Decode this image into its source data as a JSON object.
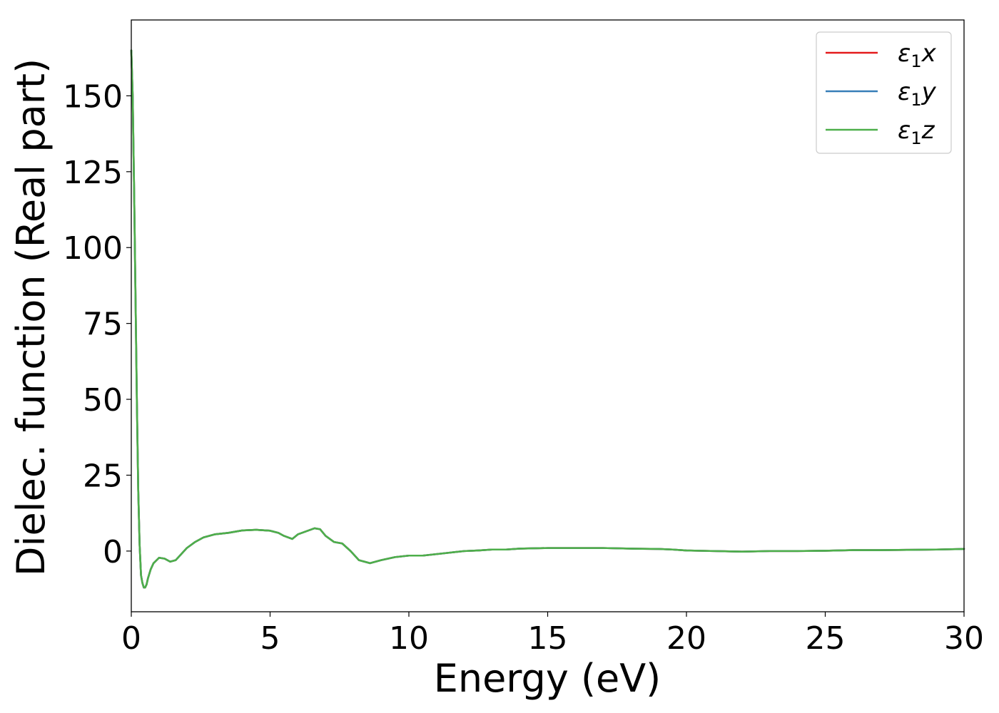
{
  "chart_data": {
    "type": "line",
    "title": "",
    "xlabel": "Energy (eV)",
    "ylabel": "Dielec. function (Real part)",
    "xlim": [
      0,
      30
    ],
    "ylim": [
      -20,
      175
    ],
    "xticks": [
      0,
      5,
      10,
      15,
      20,
      25,
      30
    ],
    "yticks": [
      0,
      25,
      50,
      75,
      100,
      125,
      150
    ],
    "grid": false,
    "legend_position": "top-right",
    "series": [
      {
        "name": "ε1x",
        "legend_base": "ε",
        "legend_sub": "1",
        "legend_suffix": "x",
        "color": "#e41a1c",
        "x": [
          0.0,
          0.05,
          0.1,
          0.15,
          0.2,
          0.25,
          0.3,
          0.35,
          0.4,
          0.45,
          0.5,
          0.55,
          0.6,
          0.7,
          0.8,
          1.0,
          1.2,
          1.4,
          1.6,
          1.8,
          2.0,
          2.3,
          2.6,
          3.0,
          3.5,
          4.0,
          4.5,
          5.0,
          5.3,
          5.5,
          5.8,
          6.0,
          6.3,
          6.6,
          6.8,
          7.0,
          7.3,
          7.6,
          7.9,
          8.2,
          8.6,
          9.0,
          9.5,
          10.0,
          10.5,
          11.0,
          11.5,
          12.0,
          12.5,
          13.0,
          13.5,
          14.0,
          15.0,
          16.0,
          17.0,
          18.0,
          19.0,
          19.5,
          20.0,
          21.0,
          22.0,
          23.0,
          24.0,
          25.0,
          26.0,
          27.0,
          28.0,
          29.0,
          30.0
        ],
        "y": [
          165,
          150,
          120,
          85,
          50,
          20,
          2,
          -8,
          -10.5,
          -12,
          -12,
          -11,
          -9,
          -6,
          -4,
          -2.2,
          -2.5,
          -3.5,
          -3,
          -1,
          1,
          3,
          4.5,
          5.5,
          6,
          6.8,
          7,
          6.7,
          6,
          5,
          4,
          5.5,
          6.5,
          7.5,
          7.2,
          5,
          3,
          2.5,
          0,
          -3,
          -4,
          -3,
          -2,
          -1.5,
          -1.5,
          -1,
          -0.5,
          0,
          0.2,
          0.5,
          0.5,
          0.8,
          1,
          1,
          1,
          0.8,
          0.7,
          0.5,
          0.2,
          0,
          -0.2,
          0,
          0,
          0.1,
          0.3,
          0.3,
          0.4,
          0.5,
          0.7
        ]
      },
      {
        "name": "ε1y",
        "legend_base": "ε",
        "legend_sub": "1",
        "legend_suffix": "y",
        "color": "#377eb8",
        "x": [
          0.0,
          0.05,
          0.1,
          0.15,
          0.2,
          0.25,
          0.3,
          0.35,
          0.4,
          0.45,
          0.5,
          0.55,
          0.6,
          0.7,
          0.8,
          1.0,
          1.2,
          1.4,
          1.6,
          1.8,
          2.0,
          2.3,
          2.6,
          3.0,
          3.5,
          4.0,
          4.5,
          5.0,
          5.3,
          5.5,
          5.8,
          6.0,
          6.3,
          6.6,
          6.8,
          7.0,
          7.3,
          7.6,
          7.9,
          8.2,
          8.6,
          9.0,
          9.5,
          10.0,
          10.5,
          11.0,
          11.5,
          12.0,
          12.5,
          13.0,
          13.5,
          14.0,
          15.0,
          16.0,
          17.0,
          18.0,
          19.0,
          19.5,
          20.0,
          21.0,
          22.0,
          23.0,
          24.0,
          25.0,
          26.0,
          27.0,
          28.0,
          29.0,
          30.0
        ],
        "y": [
          165,
          150,
          120,
          85,
          50,
          20,
          2,
          -8,
          -10.5,
          -12,
          -12,
          -11,
          -9,
          -6,
          -4,
          -2.2,
          -2.5,
          -3.5,
          -3,
          -1,
          1,
          3,
          4.5,
          5.5,
          6,
          6.8,
          7,
          6.7,
          6,
          5,
          4,
          5.5,
          6.5,
          7.5,
          7.2,
          5,
          3,
          2.5,
          0,
          -3,
          -4,
          -3,
          -2,
          -1.5,
          -1.5,
          -1,
          -0.5,
          0,
          0.2,
          0.5,
          0.5,
          0.8,
          1,
          1,
          1,
          0.8,
          0.7,
          0.5,
          0.2,
          0,
          -0.2,
          0,
          0,
          0.1,
          0.3,
          0.3,
          0.4,
          0.5,
          0.7
        ]
      },
      {
        "name": "ε1z",
        "legend_base": "ε",
        "legend_sub": "1",
        "legend_suffix": "z",
        "color": "#4daf4a",
        "x": [
          0.0,
          0.05,
          0.1,
          0.15,
          0.2,
          0.25,
          0.3,
          0.35,
          0.4,
          0.45,
          0.5,
          0.55,
          0.6,
          0.7,
          0.8,
          1.0,
          1.2,
          1.4,
          1.6,
          1.8,
          2.0,
          2.3,
          2.6,
          3.0,
          3.5,
          4.0,
          4.5,
          5.0,
          5.3,
          5.5,
          5.8,
          6.0,
          6.3,
          6.6,
          6.8,
          7.0,
          7.3,
          7.6,
          7.9,
          8.2,
          8.6,
          9.0,
          9.5,
          10.0,
          10.5,
          11.0,
          11.5,
          12.0,
          12.5,
          13.0,
          13.5,
          14.0,
          15.0,
          16.0,
          17.0,
          18.0,
          19.0,
          19.5,
          20.0,
          21.0,
          22.0,
          23.0,
          24.0,
          25.0,
          26.0,
          27.0,
          28.0,
          29.0,
          30.0
        ],
        "y": [
          165,
          150,
          120,
          85,
          50,
          20,
          2,
          -8,
          -10.5,
          -12,
          -12,
          -11,
          -9,
          -6,
          -4,
          -2.2,
          -2.5,
          -3.5,
          -3,
          -1,
          1,
          3,
          4.5,
          5.5,
          6,
          6.8,
          7,
          6.7,
          6,
          5,
          4,
          5.5,
          6.5,
          7.5,
          7.2,
          5,
          3,
          2.5,
          0,
          -3,
          -4,
          -3,
          -2,
          -1.5,
          -1.5,
          -1,
          -0.5,
          0,
          0.2,
          0.5,
          0.5,
          0.8,
          1,
          1,
          1,
          0.8,
          0.7,
          0.5,
          0.2,
          0,
          -0.2,
          0,
          0,
          0.1,
          0.3,
          0.3,
          0.4,
          0.5,
          0.7
        ]
      }
    ]
  }
}
